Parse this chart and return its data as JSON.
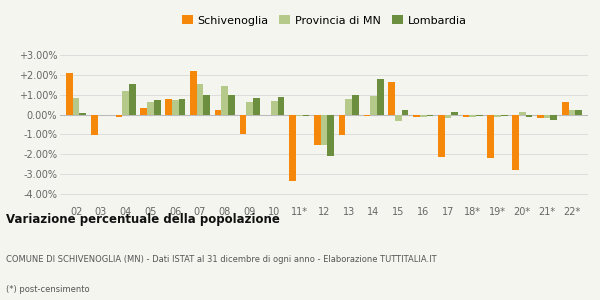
{
  "categories": [
    "02",
    "03",
    "04",
    "05",
    "06",
    "07",
    "08",
    "09",
    "10",
    "11*",
    "12",
    "13",
    "14",
    "15",
    "16",
    "17",
    "18*",
    "19*",
    "20*",
    "21*",
    "22*"
  ],
  "schivenoglia": [
    2.07,
    -1.05,
    -0.1,
    0.35,
    0.8,
    2.2,
    0.25,
    -1.0,
    0.0,
    -3.35,
    -1.55,
    -1.05,
    -0.05,
    1.65,
    -0.1,
    -2.15,
    -0.1,
    -2.2,
    -2.8,
    -0.15,
    0.65
  ],
  "provincia_mn": [
    0.85,
    0.0,
    1.2,
    0.65,
    0.75,
    1.55,
    1.45,
    0.65,
    0.7,
    -0.05,
    -1.55,
    0.8,
    0.95,
    -0.3,
    -0.1,
    -0.15,
    -0.1,
    -0.1,
    0.15,
    -0.15,
    0.25
  ],
  "lombardia": [
    0.1,
    0.0,
    1.55,
    0.75,
    0.8,
    1.0,
    1.0,
    0.85,
    0.9,
    -0.05,
    -2.1,
    1.0,
    1.8,
    0.25,
    -0.05,
    0.15,
    -0.05,
    -0.08,
    -0.1,
    -0.25,
    0.25
  ],
  "color_schivenoglia": "#f5870a",
  "color_provincia": "#b5c98a",
  "color_lombardia": "#6b8f3e",
  "title": "Variazione percentuale della popolazione",
  "subtitle": "COMUNE DI SCHIVENOGLIA (MN) - Dati ISTAT al 31 dicembre di ogni anno - Elaborazione TUTTITALIA.IT",
  "note": "(*) post-censimento",
  "ylim": [
    -4.5,
    3.5
  ],
  "yticks": [
    -4.0,
    -3.0,
    -2.0,
    -1.0,
    0.0,
    1.0,
    2.0,
    3.0
  ],
  "bg_color": "#f5f5f0",
  "grid_color": "#dddddd"
}
